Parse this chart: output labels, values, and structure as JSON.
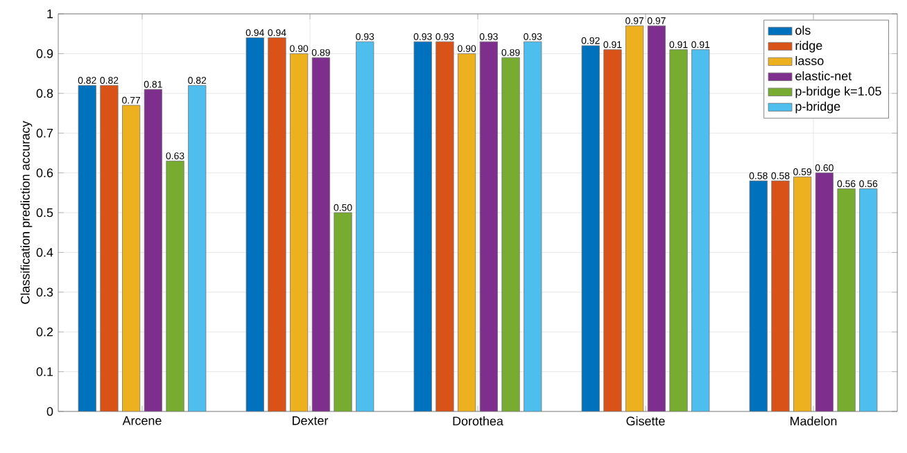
{
  "chart_data": {
    "type": "bar",
    "ylabel": "Classification prediction accuracy",
    "categories": [
      "Arcene",
      "Dexter",
      "Dorothea",
      "Gisette",
      "Madelon"
    ],
    "series": [
      {
        "name": "ols",
        "color": "#0072bd",
        "values": [
          0.82,
          0.94,
          0.93,
          0.92,
          0.58
        ],
        "value_labels": [
          "0.82",
          "0.94",
          "0.93",
          "0.92",
          "0.58"
        ]
      },
      {
        "name": "ridge",
        "color": "#d95319",
        "values": [
          0.82,
          0.94,
          0.93,
          0.91,
          0.58
        ],
        "value_labels": [
          "0.82",
          "0.94",
          "0.93",
          "0.91",
          "0.58"
        ]
      },
      {
        "name": "lasso",
        "color": "#edb120",
        "values": [
          0.77,
          0.9,
          0.9,
          0.97,
          0.59
        ],
        "value_labels": [
          "0.77",
          "0.90",
          "0.90",
          "0.97",
          "0.59"
        ]
      },
      {
        "name": "elastic-net",
        "color": "#7e2f8e",
        "values": [
          0.81,
          0.89,
          0.93,
          0.97,
          0.6
        ],
        "value_labels": [
          "0.81",
          "0.89",
          "0.93",
          "0.97",
          "0.60"
        ]
      },
      {
        "name": "p-bridge k=1.05",
        "color": "#77ac30",
        "values": [
          0.63,
          0.5,
          0.89,
          0.91,
          0.56
        ],
        "value_labels": [
          "0.63",
          "0.50",
          "0.89",
          "0.91",
          "0.56"
        ]
      },
      {
        "name": "p-bridge",
        "color": "#4dbeee",
        "values": [
          0.82,
          0.93,
          0.93,
          0.91,
          0.56
        ],
        "value_labels": [
          "0.82",
          "0.93",
          "0.93",
          "0.91",
          "0.56"
        ]
      }
    ],
    "ylim": [
      0,
      1
    ],
    "yticks": [
      0,
      0.1,
      0.2,
      0.3,
      0.4,
      0.5,
      0.6,
      0.7,
      0.8,
      0.9,
      1
    ],
    "grid": true,
    "legend": "top right"
  }
}
